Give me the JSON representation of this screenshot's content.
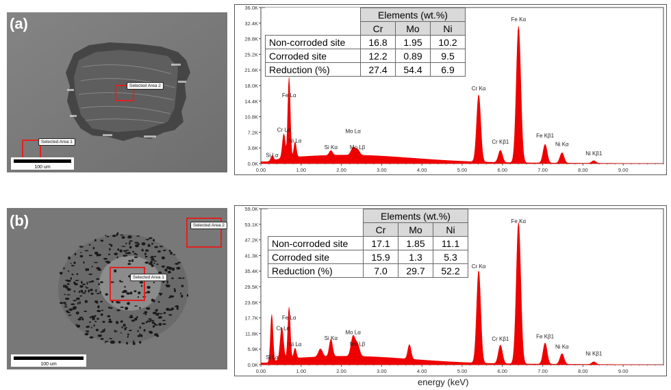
{
  "panels": [
    {
      "letter": "(a)",
      "sem": {
        "scalebar_label": "100 um",
        "areas": [
          "Selected Area 2",
          "Selected Area 1"
        ]
      },
      "table": {
        "group_header": "Elements (wt.%)",
        "columns": [
          "Cr",
          "Mo",
          "Ni"
        ],
        "rows": [
          {
            "label": "Non-corroded site",
            "values": [
              "16.8",
              "1.95",
              "10.2"
            ]
          },
          {
            "label": "Corroded site",
            "values": [
              "12.2",
              "0.89",
              "9.5"
            ]
          },
          {
            "label": "Reduction (%)",
            "values": [
              "27.4",
              "54.4",
              "6.9"
            ]
          }
        ]
      },
      "chart_data": {
        "type": "area",
        "xlabel": "",
        "ylabel": "",
        "xlim": [
          0,
          10
        ],
        "ylim": [
          0,
          36000
        ],
        "x_ticks": [
          "0.00",
          "1.00",
          "2.00",
          "3.00",
          "4.00",
          "5.00",
          "6.00",
          "7.00",
          "8.00",
          "9.00"
        ],
        "y_ticks": [
          "0.0K",
          "3.6K",
          "7.2K",
          "10.8K",
          "14.4K",
          "18.0K",
          "21.6K",
          "25.2K",
          "28.8K",
          "32.4K",
          "36.0K"
        ],
        "series_color": "#ee0000",
        "peaks": [
          {
            "x": 0.28,
            "y": 1200,
            "w": 0.03
          },
          {
            "x": 0.57,
            "y": 5500,
            "w": 0.035
          },
          {
            "x": 0.7,
            "y": 18500,
            "w": 0.03
          },
          {
            "x": 0.85,
            "y": 3500,
            "w": 0.03
          },
          {
            "x": 1.74,
            "y": 1100,
            "w": 0.04
          },
          {
            "x": 2.29,
            "y": 1700,
            "w": 0.05
          },
          {
            "x": 2.4,
            "y": 1300,
            "w": 0.05
          },
          {
            "x": 5.41,
            "y": 15500,
            "w": 0.05
          },
          {
            "x": 5.95,
            "y": 2800,
            "w": 0.05
          },
          {
            "x": 6.4,
            "y": 31500,
            "w": 0.055
          },
          {
            "x": 7.06,
            "y": 4300,
            "w": 0.05
          },
          {
            "x": 7.48,
            "y": 2400,
            "w": 0.05
          },
          {
            "x": 8.27,
            "y": 600,
            "w": 0.05
          }
        ],
        "annotations": [
          {
            "label": "Si Lα",
            "x": 0.28,
            "y": 1200
          },
          {
            "label": "Cr Lα",
            "x": 0.57,
            "y": 7000
          },
          {
            "label": "Fe Lα",
            "x": 0.7,
            "y": 15000
          },
          {
            "label": "Ni Lα",
            "x": 0.85,
            "y": 4500
          },
          {
            "label": "Si Kα",
            "x": 1.74,
            "y": 3000
          },
          {
            "label": "Mo Lα",
            "x": 2.29,
            "y": 6700
          },
          {
            "label": "Mo Lβ",
            "x": 2.4,
            "y": 3000
          },
          {
            "label": "Cr Kα",
            "x": 5.41,
            "y": 16600
          },
          {
            "label": "Cr Kβ1",
            "x": 5.95,
            "y": 4300
          },
          {
            "label": "Fe Kα",
            "x": 6.4,
            "y": 32500
          },
          {
            "label": "Fe Kβ1",
            "x": 7.06,
            "y": 5700
          },
          {
            "label": "Ni Kα",
            "x": 7.48,
            "y": 3700
          },
          {
            "label": "Ni Kβ1",
            "x": 8.27,
            "y": 1600
          }
        ]
      }
    },
    {
      "letter": "(b)",
      "sem": {
        "scalebar_label": "100 um",
        "areas": [
          "Selected Area 2",
          "Selected Area 1"
        ]
      },
      "table": {
        "group_header": "Elements (wt.%)",
        "columns": [
          "Cr",
          "Mo",
          "Ni"
        ],
        "rows": [
          {
            "label": "Non-corroded site",
            "values": [
              "17.1",
              "1.85",
              "11.1"
            ]
          },
          {
            "label": "Corroded site",
            "values": [
              "15.9",
              "1.3",
              "5.3"
            ]
          },
          {
            "label": "Reduction (%)",
            "values": [
              "7.0",
              "29.7",
              "52.2"
            ]
          }
        ]
      },
      "chart_data": {
        "type": "area",
        "xlabel": "energy (keV)",
        "ylabel": "",
        "xlim": [
          0,
          10
        ],
        "ylim": [
          0,
          59000
        ],
        "x_ticks": [
          "0.00",
          "1.00",
          "2.00",
          "3.00",
          "4.00",
          "5.00",
          "6.00",
          "7.00",
          "8.00",
          "9.00"
        ],
        "y_ticks": [
          "0.0K",
          "5.9K",
          "11.8K",
          "17.7K",
          "23.6K",
          "29.5K",
          "35.4K",
          "41.3K",
          "47.2K",
          "53.1K",
          "59.0K"
        ],
        "series_color": "#ee0000",
        "peaks": [
          {
            "x": 0.27,
            "y": 18000,
            "w": 0.03
          },
          {
            "x": 0.52,
            "y": 12000,
            "w": 0.04
          },
          {
            "x": 0.7,
            "y": 19500,
            "w": 0.03
          },
          {
            "x": 0.85,
            "y": 3800,
            "w": 0.03
          },
          {
            "x": 1.48,
            "y": 3000,
            "w": 0.05
          },
          {
            "x": 1.74,
            "y": 6500,
            "w": 0.04
          },
          {
            "x": 2.29,
            "y": 7500,
            "w": 0.05
          },
          {
            "x": 2.4,
            "y": 4500,
            "w": 0.05
          },
          {
            "x": 3.69,
            "y": 5500,
            "w": 0.04
          },
          {
            "x": 5.41,
            "y": 35000,
            "w": 0.05
          },
          {
            "x": 5.95,
            "y": 7000,
            "w": 0.05
          },
          {
            "x": 6.4,
            "y": 53500,
            "w": 0.055
          },
          {
            "x": 7.06,
            "y": 8000,
            "w": 0.05
          },
          {
            "x": 7.48,
            "y": 4000,
            "w": 0.05
          },
          {
            "x": 8.27,
            "y": 1000,
            "w": 0.05
          }
        ],
        "annotations": [
          {
            "label": "Si Lα",
            "x": 0.28,
            "y": 1500
          },
          {
            "label": "Cr Lα",
            "x": 0.55,
            "y": 12500
          },
          {
            "label": "Fe Lα",
            "x": 0.7,
            "y": 16500
          },
          {
            "label": "Ni Lα",
            "x": 0.85,
            "y": 6500
          },
          {
            "label": "Si Kα",
            "x": 1.74,
            "y": 8800
          },
          {
            "label": "Mo Lα",
            "x": 2.29,
            "y": 11000
          },
          {
            "label": "Mo Lβ",
            "x": 2.4,
            "y": 6600
          },
          {
            "label": "Cr Kα",
            "x": 5.41,
            "y": 36000
          },
          {
            "label": "Cr Kβ1",
            "x": 5.95,
            "y": 8500
          },
          {
            "label": "Fe Kα",
            "x": 6.4,
            "y": 53000
          },
          {
            "label": "Fe Kβ1",
            "x": 7.06,
            "y": 9500
          },
          {
            "label": "Ni Kα",
            "x": 7.48,
            "y": 5500
          },
          {
            "label": "Ni Kβ1",
            "x": 8.27,
            "y": 3000
          }
        ]
      }
    }
  ]
}
